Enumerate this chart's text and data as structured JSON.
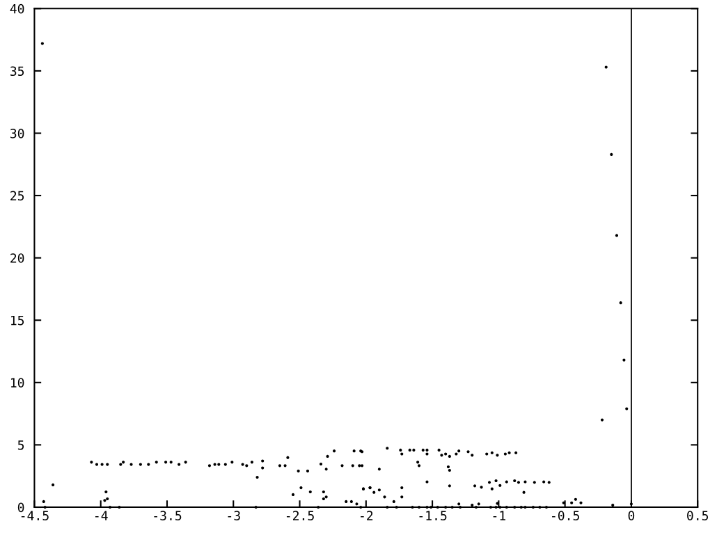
{
  "chart_data": {
    "type": "scatter",
    "marker": "circle",
    "grid": false,
    "x": [
      -0.19,
      -0.15,
      -0.11,
      -0.08,
      -0.055,
      -0.035,
      -0.22,
      -4.44,
      -4.07,
      -4.03,
      -3.99,
      -3.95,
      -3.85,
      -3.83,
      -3.77,
      -3.7,
      -3.64,
      -3.58,
      -3.51,
      -3.47,
      -3.41,
      -3.36,
      -3.18,
      -3.14,
      -3.11,
      -3.06,
      -3.01,
      -2.93,
      -2.9,
      -2.86,
      -2.78,
      -2.78,
      -2.65,
      -2.61,
      -2.59,
      -2.51,
      -2.44,
      -2.34,
      -2.3,
      -2.29,
      -2.24,
      -2.18,
      -2.1,
      -2.09,
      -2.05,
      -2.04,
      -2.82,
      -4.36,
      -4.43,
      -3.97,
      -3.95,
      -3.96,
      -2.55,
      -2.49,
      -2.42,
      -2.32,
      -2.32,
      -2.3,
      -2.15,
      -2.11,
      -2.07,
      -2.02,
      -1.97,
      -4.42,
      -3.93,
      -3.86,
      -2.83,
      -2.36,
      -2.04,
      -2.03,
      -1.84,
      -1.74,
      -1.73,
      -1.67,
      -1.64,
      -1.57,
      -1.54,
      -1.54,
      -1.45,
      -1.43,
      -1.4,
      -1.37,
      -1.32,
      -1.3,
      -1.23,
      -1.2,
      -1.09,
      -1.05,
      -1.01,
      -0.95,
      -0.92,
      -0.87,
      -2.03,
      -1.9,
      -1.61,
      -1.6,
      -1.38,
      -1.37,
      -1.54,
      -1.37,
      -1.18,
      -1.13,
      -1.07,
      -1.05,
      -1.02,
      -0.99,
      -0.94,
      -0.88,
      -0.85,
      -0.8,
      -0.73,
      -0.66,
      -0.62,
      -0.81,
      -2.02,
      -1.97,
      -1.94,
      -1.9,
      -1.86,
      -1.79,
      -1.73,
      -1.73,
      -1.3,
      -1.2,
      -1.15,
      -1.01,
      -0.42,
      -0.38,
      -0.45,
      -0.51,
      -0.14,
      0.0,
      -1.84,
      -1.77,
      -1.65,
      -1.6,
      -1.54,
      -1.51,
      -1.46,
      -1.4,
      -1.35,
      -1.29,
      -1.17,
      -1.06,
      -1.02,
      -0.99,
      -0.94,
      -0.88,
      -0.83,
      -0.8,
      -0.74,
      -0.69,
      -0.64
    ],
    "values": [
      35.3,
      28.3,
      21.8,
      16.4,
      11.8,
      7.9,
      7.0,
      37.2,
      3.61,
      3.43,
      3.43,
      3.43,
      3.43,
      3.61,
      3.43,
      3.43,
      3.43,
      3.61,
      3.61,
      3.61,
      3.43,
      3.61,
      3.33,
      3.43,
      3.43,
      3.43,
      3.61,
      3.43,
      3.33,
      3.61,
      3.71,
      3.15,
      3.33,
      3.33,
      3.98,
      2.9,
      2.9,
      3.46,
      3.05,
      4.08,
      4.51,
      3.33,
      3.33,
      4.51,
      3.33,
      4.51,
      2.4,
      1.79,
      0.45,
      0.54,
      0.67,
      1.23,
      1.01,
      1.56,
      1.23,
      1.23,
      0.67,
      0.82,
      0.45,
      0.45,
      0.26,
      1.47,
      1.56,
      0,
      0,
      0,
      0,
      0,
      0,
      4.45,
      4.73,
      4.58,
      4.27,
      4.58,
      4.58,
      4.58,
      4.58,
      4.27,
      4.58,
      4.17,
      4.27,
      4.08,
      4.27,
      4.51,
      4.45,
      4.17,
      4.27,
      4.36,
      4.17,
      4.27,
      4.36,
      4.36,
      3.33,
      3.05,
      3.61,
      3.33,
      3.24,
      2.96,
      2.03,
      1.71,
      1.71,
      1.6,
      1.99,
      1.47,
      2.12,
      1.74,
      2.03,
      2.12,
      1.99,
      2.03,
      1.99,
      2.03,
      1.99,
      1.19,
      1.47,
      1.56,
      1.19,
      1.38,
      0.82,
      0.45,
      1.56,
      0.82,
      0.26,
      0.17,
      0.26,
      0.3,
      0.63,
      0.35,
      0.35,
      0.35,
      0.17,
      0.26,
      0,
      0,
      0,
      0,
      0,
      0,
      0,
      0,
      0,
      0,
      0,
      0,
      0,
      0,
      0,
      0,
      0,
      0,
      0,
      0,
      0
    ],
    "color": "#000000",
    "xlim": [
      -4.5,
      0.5
    ],
    "ylim": [
      0,
      40
    ],
    "xticks": [
      -4.5,
      -4,
      -3.5,
      -3,
      -2.5,
      -2,
      -1.5,
      -1,
      -0.5,
      0,
      0.5
    ],
    "yticks": [
      0,
      5,
      10,
      15,
      20,
      25,
      30,
      35,
      40
    ],
    "ref_lines": [
      {
        "axis": "x",
        "value": 0,
        "color": "#000000",
        "line_style": "solid"
      }
    ]
  }
}
